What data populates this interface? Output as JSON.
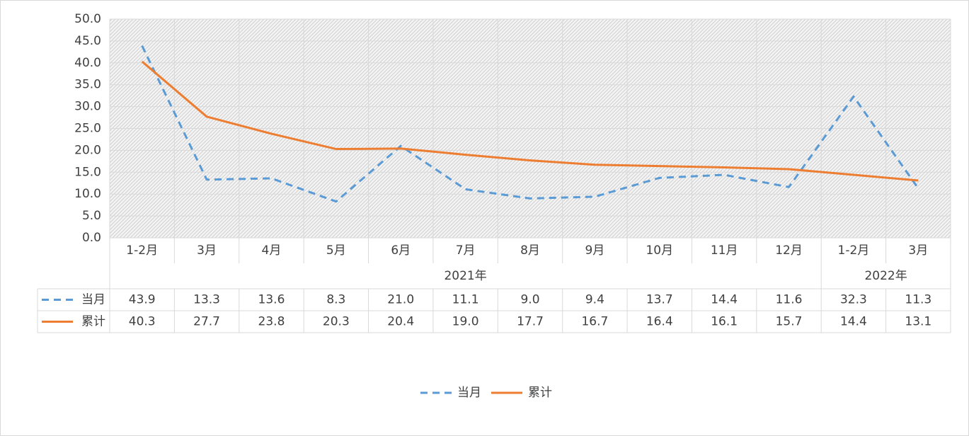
{
  "chart_data": {
    "type": "line",
    "categories": [
      "1-2月",
      "3月",
      "4月",
      "5月",
      "6月",
      "7月",
      "8月",
      "9月",
      "10月",
      "11月",
      "12月",
      "1-2月",
      "3月"
    ],
    "groups": [
      {
        "label": "2021年",
        "span": 11
      },
      {
        "label": "2022年",
        "span": 2
      }
    ],
    "series": [
      {
        "name": "当月",
        "color": "#5b9bd5",
        "dashed": true,
        "values": [
          43.9,
          13.3,
          13.6,
          8.3,
          21.0,
          11.1,
          9.0,
          9.4,
          13.7,
          14.4,
          11.6,
          32.3,
          11.3
        ],
        "value_labels": [
          "43.9",
          "13.3",
          "13.6",
          "8.3",
          "21.0",
          "11.1",
          "9.0",
          "9.4",
          "13.7",
          "14.4",
          "11.6",
          "32.3",
          "11.3"
        ]
      },
      {
        "name": "累计",
        "color": "#ed7d31",
        "dashed": false,
        "values": [
          40.3,
          27.7,
          23.8,
          20.3,
          20.4,
          19.0,
          17.7,
          16.7,
          16.4,
          16.1,
          15.7,
          14.4,
          13.1
        ],
        "value_labels": [
          "40.3",
          "27.7",
          "23.8",
          "20.3",
          "20.4",
          "19.0",
          "17.7",
          "16.7",
          "16.4",
          "16.1",
          "15.7",
          "14.4",
          "13.1"
        ]
      }
    ],
    "ylim": [
      0,
      50
    ],
    "yticks": [
      {
        "value": 0,
        "label": "0.0"
      },
      {
        "value": 5,
        "label": "5.0"
      },
      {
        "value": 10,
        "label": "10.0"
      },
      {
        "value": 15,
        "label": "15.0"
      },
      {
        "value": 20,
        "label": "20.0"
      },
      {
        "value": 25,
        "label": "25.0"
      },
      {
        "value": 30,
        "label": "30.0"
      },
      {
        "value": 35,
        "label": "35.0"
      },
      {
        "value": 40,
        "label": "40.0"
      },
      {
        "value": 45,
        "label": "45.0"
      },
      {
        "value": 50,
        "label": "50.0"
      }
    ],
    "grid": true,
    "legend": "bottom"
  }
}
